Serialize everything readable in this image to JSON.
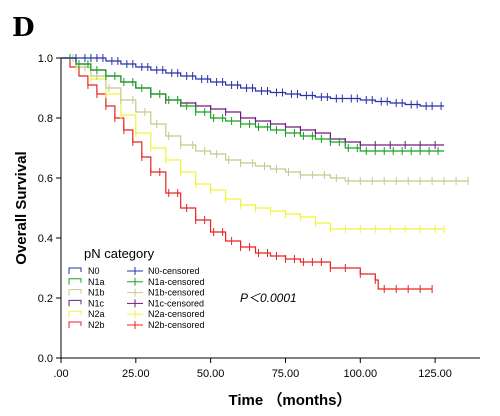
{
  "panel_label": "D",
  "chart_data": {
    "type": "line",
    "subtype": "kaplan-meier",
    "title": "",
    "xlabel": "Time （months）",
    "ylabel": "Overall Survival",
    "xlim": [
      0,
      140
    ],
    "ylim": [
      0,
      1.0
    ],
    "x_ticks": [
      0,
      25,
      50,
      75,
      100,
      125
    ],
    "x_tick_labels": [
      ".00",
      "25.00",
      "50.00",
      "75.00",
      "100.00",
      "125.00"
    ],
    "y_ticks": [
      0.0,
      0.2,
      0.4,
      0.6,
      0.8,
      1.0
    ],
    "y_tick_labels": [
      "0.0",
      "0.2",
      "0.4",
      "0.6",
      "0.8",
      "1.0"
    ],
    "grid": false,
    "legend": {
      "title": "pN category",
      "placement": "bottom-left",
      "entries": [
        "N0",
        "N1a",
        "N1b",
        "N1c",
        "N2a",
        "N2b"
      ],
      "censored_entries": [
        "N0-censored",
        "N1a-censored",
        "N1b-censored",
        "N1c-censored",
        "N2a-censored",
        "N2b-censored"
      ]
    },
    "annotation": "P＜0.0001",
    "series": [
      {
        "name": "N0",
        "color": "#2632a8",
        "steps": [
          [
            0,
            1.0
          ],
          [
            10,
            1.0
          ],
          [
            15,
            0.99
          ],
          [
            20,
            0.98
          ],
          [
            25,
            0.97
          ],
          [
            30,
            0.96
          ],
          [
            35,
            0.95
          ],
          [
            40,
            0.94
          ],
          [
            45,
            0.93
          ],
          [
            50,
            0.92
          ],
          [
            55,
            0.91
          ],
          [
            60,
            0.9
          ],
          [
            65,
            0.89
          ],
          [
            70,
            0.885
          ],
          [
            75,
            0.88
          ],
          [
            80,
            0.875
          ],
          [
            85,
            0.87
          ],
          [
            90,
            0.865
          ],
          [
            100,
            0.86
          ],
          [
            105,
            0.855
          ],
          [
            110,
            0.85
          ],
          [
            115,
            0.845
          ],
          [
            120,
            0.84
          ],
          [
            128,
            0.84
          ]
        ],
        "censored": [
          5,
          8,
          10,
          12,
          14,
          17,
          19,
          22,
          24,
          27,
          29,
          32,
          34,
          37,
          39,
          42,
          44,
          47,
          49,
          52,
          54,
          57,
          59,
          62,
          64,
          67,
          69,
          72,
          74,
          77,
          79,
          82,
          84,
          87,
          89,
          92,
          94,
          97,
          99,
          102,
          104,
          107,
          109,
          112,
          114,
          117,
          119,
          122,
          124,
          127
        ]
      },
      {
        "name": "N1a",
        "color": "#14a21e",
        "steps": [
          [
            0,
            1.0
          ],
          [
            5,
            0.98
          ],
          [
            10,
            0.96
          ],
          [
            15,
            0.94
          ],
          [
            20,
            0.92
          ],
          [
            25,
            0.9
          ],
          [
            30,
            0.88
          ],
          [
            35,
            0.86
          ],
          [
            40,
            0.84
          ],
          [
            45,
            0.82
          ],
          [
            50,
            0.8
          ],
          [
            55,
            0.79
          ],
          [
            60,
            0.78
          ],
          [
            65,
            0.77
          ],
          [
            70,
            0.76
          ],
          [
            75,
            0.75
          ],
          [
            80,
            0.74
          ],
          [
            85,
            0.73
          ],
          [
            90,
            0.72
          ],
          [
            95,
            0.7
          ],
          [
            100,
            0.69
          ],
          [
            128,
            0.69
          ]
        ],
        "censored": [
          3,
          6,
          9,
          12,
          15,
          18,
          21,
          24,
          27,
          30,
          33,
          36,
          39,
          42,
          45,
          48,
          51,
          54,
          57,
          60,
          63,
          66,
          69,
          72,
          75,
          78,
          81,
          84,
          87,
          90,
          93,
          96,
          99,
          102,
          105,
          108,
          111,
          114,
          117,
          120,
          123,
          126
        ]
      },
      {
        "name": "N1b",
        "color": "#c8c88c",
        "steps": [
          [
            0,
            1.0
          ],
          [
            5,
            0.97
          ],
          [
            10,
            0.94
          ],
          [
            15,
            0.9
          ],
          [
            20,
            0.86
          ],
          [
            25,
            0.82
          ],
          [
            30,
            0.78
          ],
          [
            35,
            0.74
          ],
          [
            40,
            0.71
          ],
          [
            45,
            0.69
          ],
          [
            50,
            0.68
          ],
          [
            55,
            0.66
          ],
          [
            60,
            0.65
          ],
          [
            65,
            0.64
          ],
          [
            70,
            0.63
          ],
          [
            75,
            0.62
          ],
          [
            80,
            0.61
          ],
          [
            90,
            0.6
          ],
          [
            95,
            0.59
          ],
          [
            136,
            0.59
          ]
        ],
        "censored": [
          4,
          8,
          12,
          16,
          20,
          24,
          28,
          32,
          36,
          40,
          44,
          48,
          52,
          56,
          60,
          64,
          68,
          72,
          76,
          80,
          84,
          88,
          92,
          96,
          100,
          104,
          108,
          112,
          116,
          120,
          124,
          128,
          132,
          136
        ]
      },
      {
        "name": "N1c",
        "color": "#701a84",
        "steps": [
          [
            0,
            1.0
          ],
          [
            5,
            0.98
          ],
          [
            10,
            0.96
          ],
          [
            15,
            0.94
          ],
          [
            20,
            0.92
          ],
          [
            25,
            0.9
          ],
          [
            30,
            0.88
          ],
          [
            35,
            0.86
          ],
          [
            40,
            0.85
          ],
          [
            45,
            0.84
          ],
          [
            50,
            0.83
          ],
          [
            55,
            0.82
          ],
          [
            60,
            0.8
          ],
          [
            65,
            0.79
          ],
          [
            70,
            0.78
          ],
          [
            75,
            0.77
          ],
          [
            80,
            0.76
          ],
          [
            85,
            0.75
          ],
          [
            90,
            0.73
          ],
          [
            95,
            0.72
          ],
          [
            100,
            0.71
          ],
          [
            128,
            0.71
          ]
        ],
        "censored": [
          30,
          35,
          40,
          45,
          50,
          55,
          60,
          65,
          70,
          75,
          80,
          85,
          90,
          95,
          100,
          105,
          110,
          115,
          120,
          125
        ]
      },
      {
        "name": "N2a",
        "color": "#f2f23c",
        "steps": [
          [
            0,
            1.0
          ],
          [
            5,
            0.97
          ],
          [
            10,
            0.93
          ],
          [
            15,
            0.88
          ],
          [
            20,
            0.81
          ],
          [
            25,
            0.75
          ],
          [
            30,
            0.7
          ],
          [
            35,
            0.66
          ],
          [
            40,
            0.62
          ],
          [
            45,
            0.58
          ],
          [
            50,
            0.56
          ],
          [
            55,
            0.53
          ],
          [
            60,
            0.51
          ],
          [
            65,
            0.5
          ],
          [
            70,
            0.49
          ],
          [
            75,
            0.48
          ],
          [
            80,
            0.47
          ],
          [
            85,
            0.45
          ],
          [
            90,
            0.43
          ],
          [
            128,
            0.43
          ]
        ],
        "censored": [
          5,
          10,
          15,
          20,
          25,
          30,
          35,
          40,
          45,
          50,
          55,
          60,
          65,
          70,
          75,
          80,
          85,
          90,
          95,
          100,
          105,
          110,
          115,
          120,
          125,
          128
        ]
      },
      {
        "name": "N2b",
        "color": "#e62424",
        "steps": [
          [
            0,
            1.0
          ],
          [
            3,
            0.97
          ],
          [
            6,
            0.94
          ],
          [
            9,
            0.91
          ],
          [
            12,
            0.88
          ],
          [
            15,
            0.84
          ],
          [
            18,
            0.8
          ],
          [
            21,
            0.76
          ],
          [
            24,
            0.72
          ],
          [
            27,
            0.67
          ],
          [
            30,
            0.62
          ],
          [
            35,
            0.55
          ],
          [
            40,
            0.5
          ],
          [
            45,
            0.46
          ],
          [
            50,
            0.42
          ],
          [
            55,
            0.39
          ],
          [
            60,
            0.37
          ],
          [
            65,
            0.35
          ],
          [
            70,
            0.34
          ],
          [
            75,
            0.33
          ],
          [
            80,
            0.32
          ],
          [
            90,
            0.3
          ],
          [
            100,
            0.28
          ],
          [
            105,
            0.26
          ],
          [
            106,
            0.23
          ],
          [
            124,
            0.23
          ]
        ],
        "censored": [
          9,
          12,
          15,
          18,
          21,
          24,
          27,
          30,
          33,
          36,
          39,
          42,
          45,
          48,
          51,
          54,
          57,
          60,
          63,
          66,
          69,
          72,
          75,
          78,
          81,
          84,
          87,
          90,
          95,
          100,
          105,
          108,
          112,
          116,
          120,
          124
        ]
      }
    ]
  }
}
